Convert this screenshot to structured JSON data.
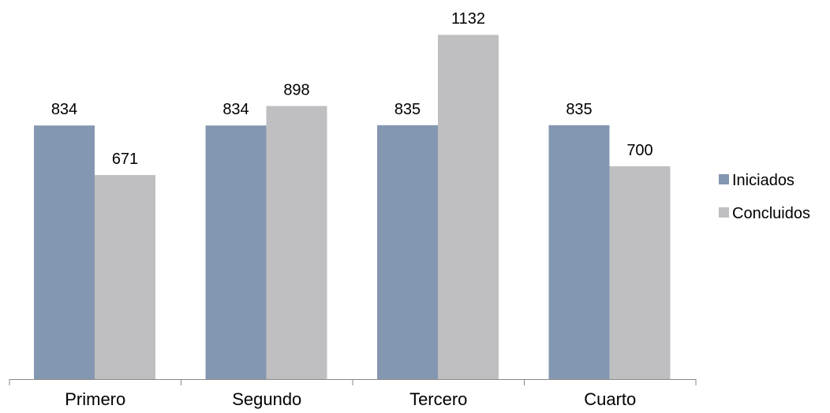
{
  "chart_data": {
    "type": "bar",
    "categories": [
      "Primero",
      "Segundo",
      "Tercero",
      "Cuarto"
    ],
    "series": [
      {
        "name": "Iniciados",
        "values": [
          834,
          834,
          835,
          835
        ],
        "color": "#8497b0"
      },
      {
        "name": "Concluidos",
        "values": [
          671,
          898,
          1132,
          700
        ],
        "color": "#bfbfc1"
      }
    ],
    "ylim": [
      0,
      1200
    ],
    "grid": false,
    "data_labels": true,
    "legend_position": "right"
  }
}
